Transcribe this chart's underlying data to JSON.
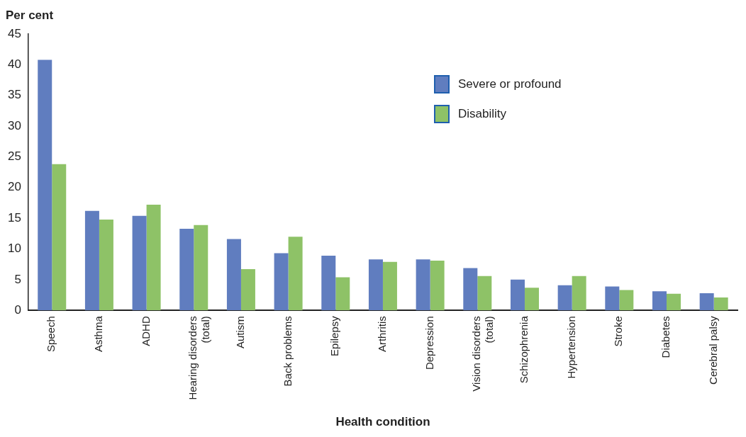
{
  "chart_data": {
    "type": "bar",
    "xlabel": "Health condition",
    "ylabel": "Per cent",
    "categories": [
      "Speech",
      "Asthma",
      "ADHD",
      "Hearing disorders\n(total)",
      "Autism",
      "Back problems",
      "Epilepsy",
      "Arthritis",
      "Depression",
      "Vision disorders\n(total)",
      "Schizophrenia",
      "Hypertension",
      "Stroke",
      "Diabetes",
      "Cerebral palsy"
    ],
    "series": [
      {
        "name": "Severe or profound",
        "color": "#607dbf",
        "values": [
          40.8,
          16.2,
          15.4,
          13.3,
          11.6,
          9.3,
          8.9,
          8.3,
          8.3,
          6.9,
          5.0,
          4.1,
          3.9,
          3.1,
          2.8
        ]
      },
      {
        "name": "Disability",
        "color": "#8ec267",
        "values": [
          23.8,
          14.8,
          17.2,
          13.9,
          6.7,
          12.0,
          5.4,
          7.9,
          8.1,
          5.6,
          3.7,
          5.6,
          3.3,
          2.7,
          2.1
        ]
      }
    ],
    "ylim": [
      0,
      45
    ],
    "yticks": [
      0,
      5,
      10,
      15,
      20,
      25,
      30,
      35,
      40,
      45
    ],
    "grid": false,
    "legend": "top right"
  }
}
